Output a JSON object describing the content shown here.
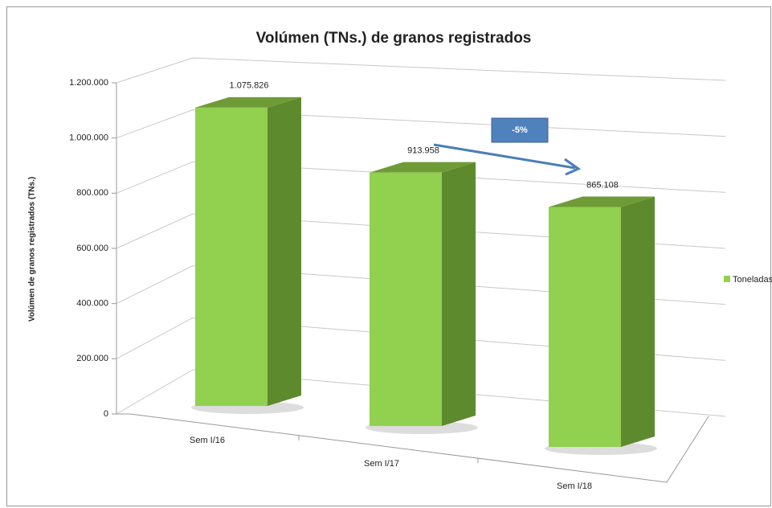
{
  "chart_data": {
    "type": "bar3d",
    "title": "Volúmen (TNs.) de granos registrados",
    "y_label": "Volúmen de granos registrados (TNs.)",
    "categories": [
      "Sem I/16",
      "Sem I/17",
      "Sem I/18"
    ],
    "series": [
      {
        "name": "Toneladas",
        "color": "#92d050",
        "values": [
          1075826,
          913958,
          865108
        ],
        "value_labels": [
          "1.075.826",
          "913.958",
          "865.108"
        ]
      }
    ],
    "ylim": [
      0,
      1200000
    ],
    "yticks": [
      0,
      {
        "value": 200000,
        "label": "200.000"
      },
      {
        "value": 400000,
        "label": "400.000"
      },
      {
        "value": 600000,
        "label": "600.000"
      },
      {
        "value": 800000,
        "label": "800.000"
      },
      {
        "value": 1000000,
        "label": "1.000.000"
      },
      {
        "value": 1200000,
        "label": "1.200.000"
      }
    ],
    "grid": true,
    "legend": "right",
    "annotation": "-5%"
  }
}
